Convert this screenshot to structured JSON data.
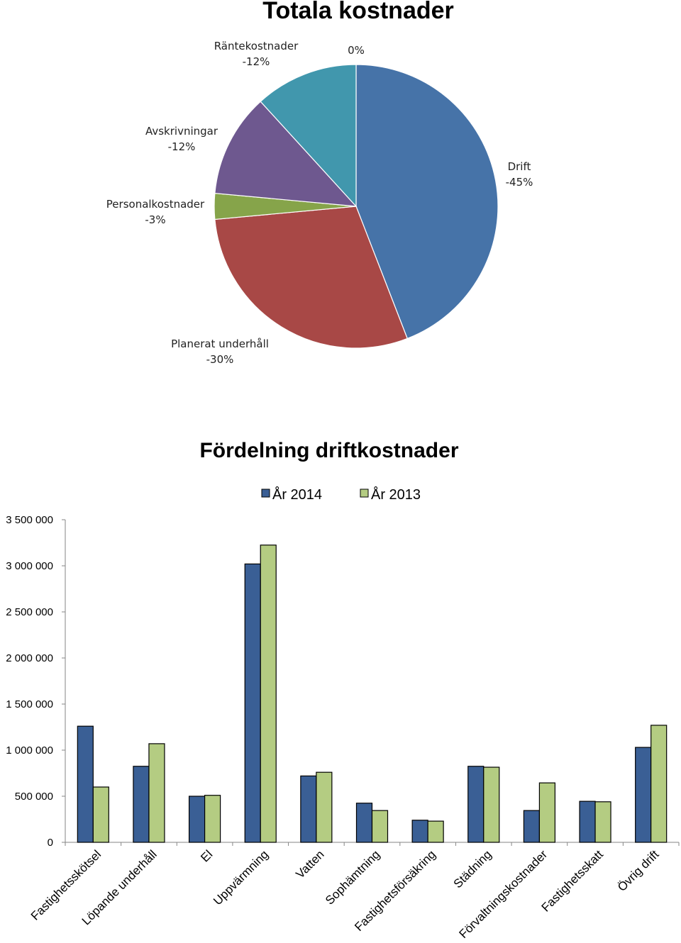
{
  "chart_data": [
    {
      "type": "pie",
      "title": "Totala kostnader",
      "slices": [
        {
          "name": "Drift",
          "value_label": "-45%",
          "value": 45,
          "color": "#4673a8"
        },
        {
          "name": "Planerat underhåll",
          "value_label": "-30%",
          "value": 30,
          "color": "#a84846"
        },
        {
          "name": "Personalkostnader",
          "value_label": "-3%",
          "value": 3,
          "color": "#86a44a"
        },
        {
          "name": "Avskrivningar",
          "value_label": "-12%",
          "value": 12,
          "color": "#6e588f"
        },
        {
          "name": "Räntekostnader",
          "value_label": "-12%",
          "value": 12,
          "color": "#4197ad"
        },
        {
          "name": "",
          "value_label": "0%",
          "value": 0,
          "color": "#d9823b"
        }
      ]
    },
    {
      "type": "bar",
      "title": "Fördelning driftkostnader",
      "categories": [
        "Fastighetsskötsel",
        "Löpande underhåll",
        "El",
        "Uppvärmning",
        "Vatten",
        "Sophämtning",
        "Fastighetsförsäkring",
        "Städning",
        "Förvaltningskostnader",
        "Fastighetsskatt",
        "Övrig drift"
      ],
      "series": [
        {
          "name": "År 2014",
          "color": "#3a5f95",
          "values": [
            1260000,
            825000,
            500000,
            3020000,
            720000,
            425000,
            240000,
            825000,
            345000,
            445000,
            1030000
          ]
        },
        {
          "name": "År 2013",
          "color": "#b4cc82",
          "values": [
            600000,
            1070000,
            510000,
            3225000,
            760000,
            345000,
            230000,
            815000,
            645000,
            440000,
            1270000
          ]
        }
      ],
      "y_ticks": [
        "0",
        "500 000",
        "1 000 000",
        "1 500 000",
        "2 000 000",
        "2 500 000",
        "3 000 000",
        "3 500 000"
      ],
      "ylim": [
        0,
        3500000
      ],
      "legend": "top",
      "grid": false
    }
  ]
}
